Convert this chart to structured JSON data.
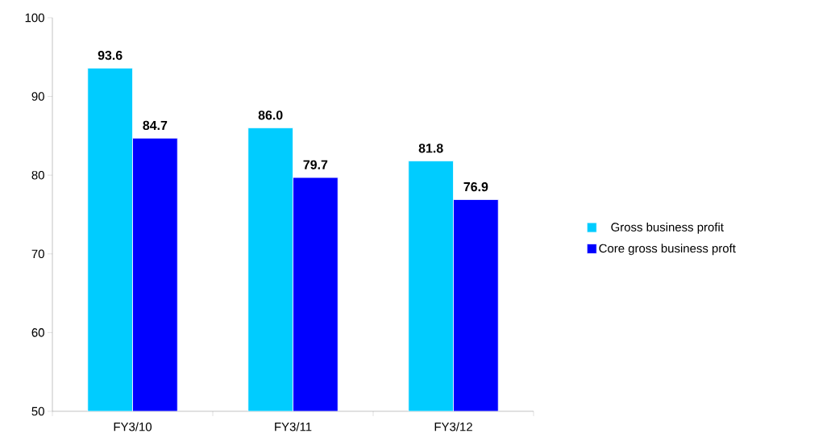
{
  "chart_data": {
    "type": "bar",
    "categories": [
      "FY3/10",
      "FY3/11",
      "FY3/12"
    ],
    "series": [
      {
        "name": "Gross business profit",
        "color": "#00ccff",
        "values": [
          93.6,
          86.0,
          81.8
        ],
        "value_labels": [
          "93.6",
          "86.0",
          "81.8"
        ]
      },
      {
        "name": "Core gross business proft",
        "color": "#0000ff",
        "values": [
          84.7,
          79.7,
          76.9
        ],
        "value_labels": [
          "84.7",
          "79.7",
          "76.9"
        ]
      }
    ],
    "ylim": [
      50,
      100
    ],
    "yticks": [
      50,
      60,
      70,
      80,
      90,
      100
    ],
    "grid": false,
    "legend": "right"
  }
}
